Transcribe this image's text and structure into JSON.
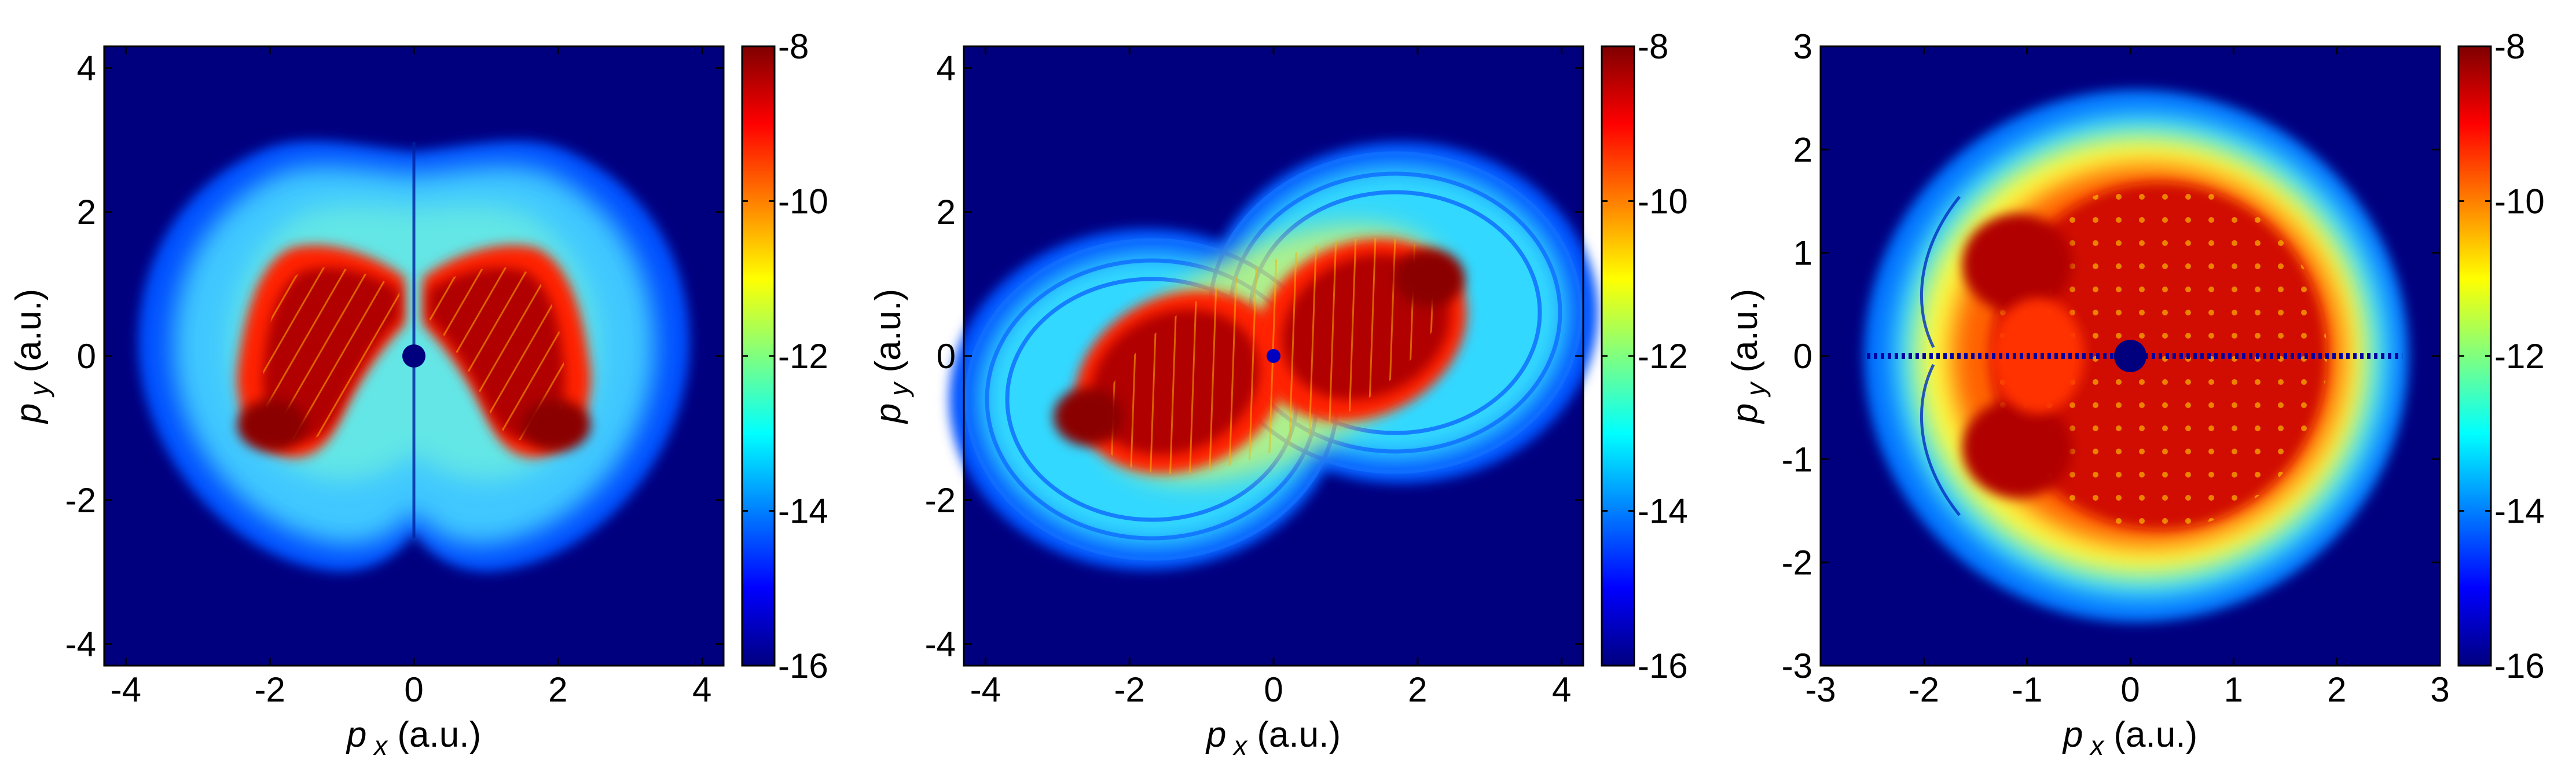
{
  "colormap": [
    "#00007f",
    "#0000ff",
    "#007fff",
    "#00ffff",
    "#7fff7f",
    "#ffff00",
    "#ff7f00",
    "#ff0000",
    "#7f0000"
  ],
  "chart_data": [
    {
      "type": "heatmap",
      "title": "",
      "xlabel": {
        "symbol": "p",
        "sub": "x",
        "unit": "(a.u.)"
      },
      "ylabel": {
        "symbol": "p",
        "sub": "y",
        "unit": "(a.u.)"
      },
      "xlim": [
        -4.3,
        4.3
      ],
      "ylim": [
        -4.3,
        4.3
      ],
      "xticks": [
        -4,
        -2,
        0,
        2,
        4
      ],
      "yticks": [
        -4,
        -2,
        0,
        2,
        4
      ],
      "colorbar": {
        "range": [
          -16,
          -8
        ],
        "ticks": [
          -8,
          -10,
          -12,
          -14,
          -16
        ]
      },
      "pattern": "heart"
    },
    {
      "type": "heatmap",
      "title": "",
      "xlabel": {
        "symbol": "p",
        "sub": "x",
        "unit": "(a.u.)"
      },
      "ylabel": {
        "symbol": "p",
        "sub": "y",
        "unit": "(a.u.)"
      },
      "xlim": [
        -4.3,
        4.3
      ],
      "ylim": [
        -4.3,
        4.3
      ],
      "xticks": [
        -4,
        -2,
        0,
        2,
        4
      ],
      "yticks": [
        -4,
        -2,
        0,
        2,
        4
      ],
      "colorbar": {
        "range": [
          -16,
          -8
        ],
        "ticks": [
          -8,
          -10,
          -12,
          -14,
          -16
        ]
      },
      "pattern": "twin-lobes"
    },
    {
      "type": "heatmap",
      "title": "",
      "xlabel": {
        "symbol": "p",
        "sub": "x",
        "unit": "(a.u.)"
      },
      "ylabel": {
        "symbol": "p",
        "sub": "y",
        "unit": "(a.u.)"
      },
      "xlim": [
        -3,
        3
      ],
      "ylim": [
        -3,
        3
      ],
      "xticks": [
        -3,
        -2,
        -1,
        0,
        1,
        2,
        3
      ],
      "yticks": [
        -3,
        -2,
        -1,
        0,
        1,
        2,
        3
      ],
      "colorbar": {
        "range": [
          -16,
          -8
        ],
        "ticks": [
          -8,
          -10,
          -12,
          -14,
          -16
        ]
      },
      "pattern": "oval"
    }
  ]
}
